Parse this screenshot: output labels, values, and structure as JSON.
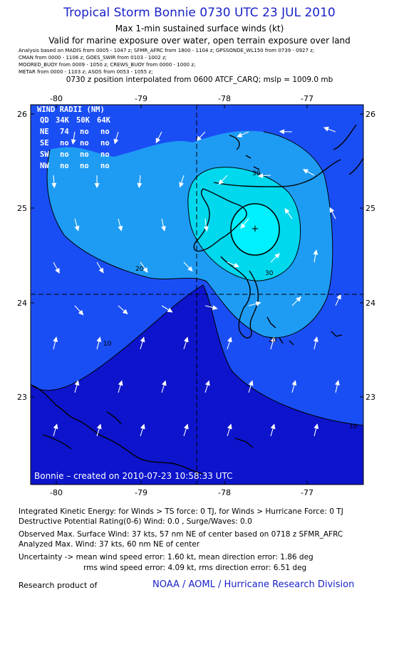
{
  "header": {
    "title": "Tropical Storm Bonnie 0730 UTC 23 JUL 2010",
    "subtitle": "Max 1-min sustained surface winds (kt)",
    "validity": "Valid for marine exposure over water, open terrain exposure over land",
    "analysis_lines": [
      "Analysis based on   MADIS from 0005 - 1047 z;  SFMR_AFRC from 1800 - 1104 z;  GPSSONDE_WL150 from 0739 - 0927 z;",
      "CMAN from 0000 - 1106 z;  GOES_SWIR from 0103 - 1002 z;",
      "MOORED_BUOY from 0009 - 1050 z;  CREWS_BUOY from 0000 - 1000 z;",
      "METAR from 0000 - 1103 z;  ASOS from 0053 - 1055 z;"
    ],
    "position_line": "0730 z position interpolated from 0600 ATCF_CARQ; mslp = 1009.0 mb"
  },
  "map": {
    "lon_labels": [
      "-80",
      "-79",
      "-78",
      "-77"
    ],
    "lat_labels": [
      "26",
      "25",
      "24",
      "23"
    ],
    "contour_labels": [
      "30",
      "30",
      "20",
      "20",
      "10",
      "10"
    ],
    "storm_center_marker": "+",
    "wind_radii": {
      "title": "WIND RADII (NM)",
      "header": [
        "QD",
        "34K",
        "50K",
        "64K"
      ],
      "rows": [
        [
          "NE",
          "74",
          "no",
          "no"
        ],
        [
          "SE",
          "no",
          "no",
          "no"
        ],
        [
          "SW",
          "no",
          "no",
          "no"
        ],
        [
          "NW",
          "no",
          "no",
          "no"
        ]
      ]
    },
    "credit": "Bonnie – created on 2010-07-23  10:58:33 UTC",
    "colors": {
      "band_lt10": "#0d14cc",
      "band_10_20": "#1a4ef5",
      "band_20_30": "#1e9cf4",
      "band_30_34": "#00d8ee",
      "band_gt34": "#00f0ff",
      "land": "#000000"
    }
  },
  "stats": {
    "ike": "Integrated Kinetic Energy:  for Winds > TS force: 0 TJ,  for Winds > Hurricane Force: 0 TJ",
    "dpr": "Destructive Potential Rating(0-6)   Wind: 0.0 , Surge/Waves: 0.0",
    "observed": "Observed Max. Surface Wind: 37 kts, 57 nm NE of center based on 0718 z SFMR_AFRC",
    "analyzed": "Analyzed Max. Wind: 37 kts, 60 nm NE of center",
    "uncertainty1": "Uncertainty -> mean wind speed error: 1.60 kt,    mean direction error: 1.86 deg",
    "uncertainty2": "rms wind speed error: 4.09 kt,   rms direction error: 6.51 deg"
  },
  "footer": {
    "research_label": "Research product of",
    "research_link": "NOAA / AOML / Hurricane Research Division"
  }
}
